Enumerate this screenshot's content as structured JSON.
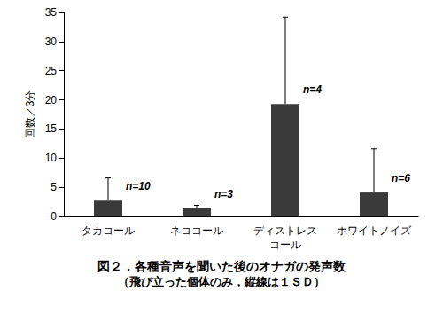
{
  "chart_data": {
    "type": "bar",
    "title": "図２．各種音声を聞いた後のオナガの発声数",
    "subtitle": "（飛び立った個体のみ，縦線は１ＳＤ）",
    "y_label": "回数／3分",
    "categories": [
      "タカコール",
      "ネココール",
      "ディストレス\nコール",
      "ホワイトノイズ"
    ],
    "values": [
      2.7,
      1.4,
      19.3,
      4.1
    ],
    "sd": [
      3.9,
      0.5,
      14.9,
      7.5
    ],
    "annotations": [
      "n=10",
      "n=3",
      "n=4",
      "n=6"
    ],
    "color": "#3a3a3a",
    "ylim": [
      0,
      35
    ],
    "yticks": [
      0,
      5,
      10,
      15,
      20,
      25,
      30,
      35
    ],
    "grid": false
  }
}
